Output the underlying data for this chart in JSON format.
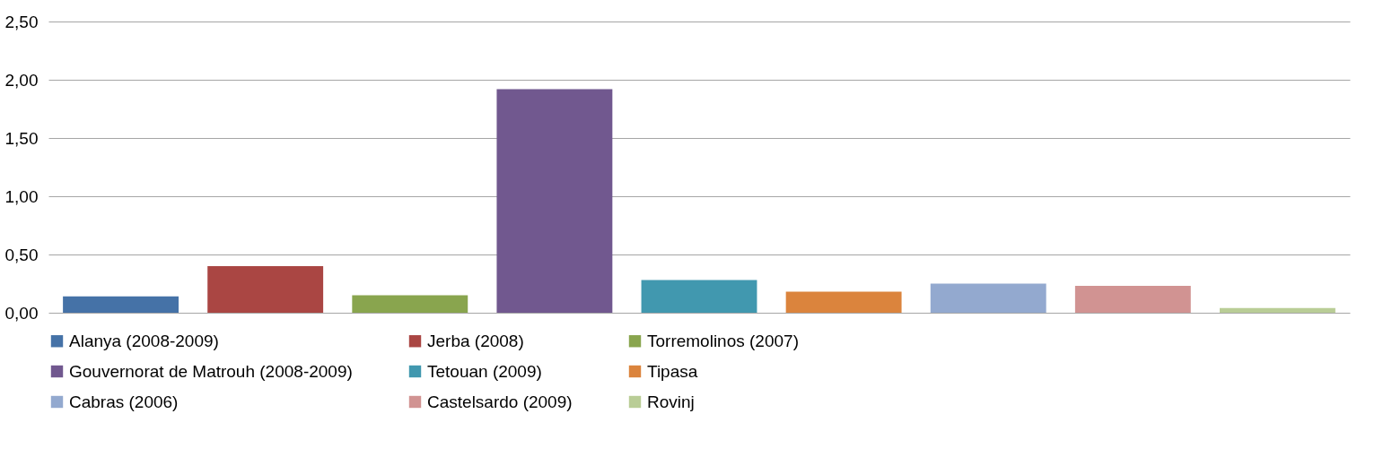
{
  "chart_data": {
    "type": "bar",
    "categories": [
      null,
      null,
      null,
      null,
      null,
      null,
      null,
      null,
      null
    ],
    "series": [
      {
        "name": "Alanya (2008-2009)",
        "color": "#4572a7",
        "values": [
          0.14,
          null,
          null,
          null,
          null,
          null,
          null,
          null,
          null
        ]
      },
      {
        "name": "Jerba (2008)",
        "color": "#aa4643",
        "values": [
          null,
          0.4,
          null,
          null,
          null,
          null,
          null,
          null,
          null
        ]
      },
      {
        "name": "Torremolinos (2007)",
        "color": "#89a54e",
        "values": [
          null,
          null,
          0.15,
          null,
          null,
          null,
          null,
          null,
          null
        ]
      },
      {
        "name": "Gouvernorat de Matrouh (2008-2009)",
        "color": "#71588f",
        "values": [
          null,
          null,
          null,
          1.92,
          null,
          null,
          null,
          null,
          null
        ]
      },
      {
        "name": "Tetouan (2009)",
        "color": "#4198af",
        "values": [
          null,
          null,
          null,
          null,
          0.28,
          null,
          null,
          null,
          null
        ]
      },
      {
        "name": "Tipasa",
        "color": "#db843d",
        "values": [
          null,
          null,
          null,
          null,
          null,
          0.18,
          null,
          null,
          null
        ]
      },
      {
        "name": "Cabras (2006)",
        "color": "#93a9cf",
        "values": [
          null,
          null,
          null,
          null,
          null,
          null,
          0.25,
          null,
          null
        ]
      },
      {
        "name": "Castelsardo (2009)",
        "color": "#d19392",
        "values": [
          null,
          null,
          null,
          null,
          null,
          null,
          null,
          0.23,
          null
        ]
      },
      {
        "name": "Rovinj",
        "color": "#b9cd96",
        "values": [
          null,
          null,
          null,
          null,
          null,
          null,
          null,
          null,
          0.04
        ]
      }
    ],
    "ylim": [
      0,
      2.5
    ],
    "yticks": [
      {
        "value": 0,
        "label": "0,00"
      },
      {
        "value": 0.5,
        "label": "0,50"
      },
      {
        "value": 1,
        "label": "1,00"
      },
      {
        "value": 1.5,
        "label": "1,50"
      },
      {
        "value": 2,
        "label": "2,00"
      },
      {
        "value": 2.5,
        "label": "2,50"
      }
    ],
    "grid": "y",
    "legend": "bottom"
  }
}
